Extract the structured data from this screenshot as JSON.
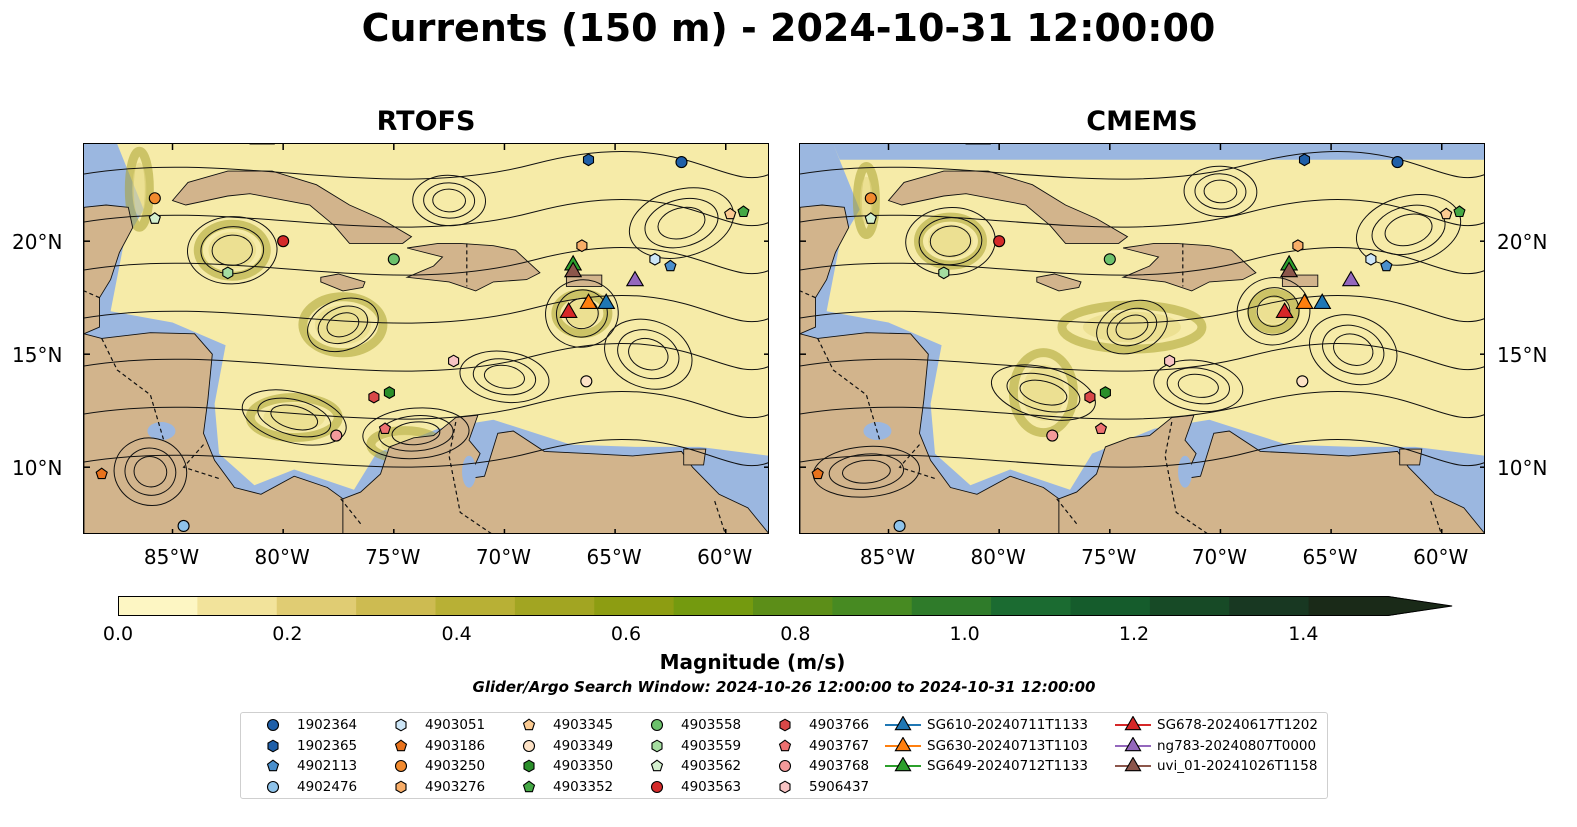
{
  "title": "Currents (150 m) - 2024-10-31 12:00:00",
  "panels": [
    {
      "title": "RTOFS"
    },
    {
      "title": "CMEMS"
    }
  ],
  "axes": {
    "lon_labels": [
      "85°W",
      "80°W",
      "75°W",
      "70°W",
      "65°W",
      "60°W"
    ],
    "lon_values": [
      -85,
      -80,
      -75,
      -70,
      -65,
      -60
    ],
    "lat_labels": [
      "20°N",
      "15°N",
      "10°N"
    ],
    "lat_values": [
      20,
      15,
      10
    ],
    "lon_range": [
      -89,
      -58
    ],
    "lat_range": [
      7,
      24.3
    ]
  },
  "colorbar": {
    "label": "Magnitude (m/s)",
    "ticks": [
      "0.0",
      "0.2",
      "0.4",
      "0.6",
      "0.8",
      "1.0",
      "1.2",
      "1.4"
    ],
    "tick_values": [
      0,
      0.2,
      0.4,
      0.6,
      0.8,
      1.0,
      1.2,
      1.4
    ],
    "range": [
      0,
      1.5
    ],
    "extend": "max",
    "colors": [
      "#fdf6c3",
      "#f2e39b",
      "#e0cc73",
      "#cdbb51",
      "#b8b035",
      "#a2a522",
      "#8d9d12",
      "#749a0f",
      "#5c8e18",
      "#478a22",
      "#2f7b2a",
      "#1b6b31",
      "#155c2c",
      "#174a26",
      "#183822",
      "#1a2a18"
    ]
  },
  "search_window": "Glider/Argo Search Window: 2024-10-26 12:00:00 to 2024-10-31 12:00:00",
  "colors": {
    "land": "#d2b48c",
    "ocean": "#9bb7e0"
  },
  "legend": [
    {
      "label": "1902364",
      "marker": "circle",
      "color": "#1f5fa8"
    },
    {
      "label": "1902365",
      "marker": "hexagon",
      "color": "#1f5fa8"
    },
    {
      "label": "4902113",
      "marker": "pentagon",
      "color": "#4a8fcc"
    },
    {
      "label": "4902476",
      "marker": "circle",
      "color": "#8fc3ea"
    },
    {
      "label": "4903051",
      "marker": "hexagon",
      "color": "#cde6f7"
    },
    {
      "label": "4903186",
      "marker": "pentagon",
      "color": "#e8721c"
    },
    {
      "label": "4903250",
      "marker": "circle",
      "color": "#f28a2e"
    },
    {
      "label": "4903276",
      "marker": "hexagon",
      "color": "#f8ad68"
    },
    {
      "label": "4903345",
      "marker": "pentagon",
      "color": "#fbcb92"
    },
    {
      "label": "4903349",
      "marker": "circle",
      "color": "#fde2c6"
    },
    {
      "label": "4903350",
      "marker": "hexagon",
      "color": "#2a8f2a"
    },
    {
      "label": "4903352",
      "marker": "pentagon",
      "color": "#45a845"
    },
    {
      "label": "4903558",
      "marker": "circle",
      "color": "#6cc16c"
    },
    {
      "label": "4903559",
      "marker": "hexagon",
      "color": "#a5dda0"
    },
    {
      "label": "4903562",
      "marker": "pentagon",
      "color": "#d4f0cf"
    },
    {
      "label": "4903563",
      "marker": "circle",
      "color": "#d42a2a"
    },
    {
      "label": "4903766",
      "marker": "hexagon",
      "color": "#d94848"
    },
    {
      "label": "4903767",
      "marker": "pentagon",
      "color": "#ee7070"
    },
    {
      "label": "4903768",
      "marker": "circle",
      "color": "#f39a9a"
    },
    {
      "label": "5906437",
      "marker": "hexagon",
      "color": "#f8c4c4"
    },
    {
      "label": "SG610-20240711T1133",
      "marker": "triangle",
      "color": "#1f77b4"
    },
    {
      "label": "SG630-20240713T1103",
      "marker": "triangle",
      "color": "#ff7f0e"
    },
    {
      "label": "SG649-20240712T1133",
      "marker": "triangle",
      "color": "#2ca02c"
    },
    {
      "label": "SG678-20240617T1202",
      "marker": "triangle",
      "color": "#d62728"
    },
    {
      "label": "ng783-20240807T0000",
      "marker": "triangle",
      "color": "#9467bd"
    },
    {
      "label": "uvi_01-20241026T1158",
      "marker": "triangle",
      "color": "#8c564b"
    }
  ],
  "markers": [
    {
      "id": "1902364",
      "lon": -62,
      "lat": 23.5
    },
    {
      "id": "1902365",
      "lon": -66.2,
      "lat": 23.6
    },
    {
      "id": "4902113",
      "lon": -62.5,
      "lat": 18.9
    },
    {
      "id": "4902476",
      "lon": -84.5,
      "lat": 7.4
    },
    {
      "id": "4903051",
      "lon": -63.2,
      "lat": 19.2
    },
    {
      "id": "4903186",
      "lon": -88.2,
      "lat": 9.7
    },
    {
      "id": "4903250",
      "lon": -85.8,
      "lat": 21.9
    },
    {
      "id": "4903276",
      "lon": -66.5,
      "lat": 19.8
    },
    {
      "id": "4903345",
      "lon": -59.8,
      "lat": 21.2
    },
    {
      "id": "4903349",
      "lon": -66.3,
      "lat": 13.8
    },
    {
      "id": "4903350",
      "lon": -75.2,
      "lat": 13.3
    },
    {
      "id": "4903352",
      "lon": -59.2,
      "lat": 21.3
    },
    {
      "id": "4903558",
      "lon": -75.0,
      "lat": 19.2
    },
    {
      "id": "4903559",
      "lon": -82.5,
      "lat": 18.6
    },
    {
      "id": "4903562",
      "lon": -85.8,
      "lat": 21.0
    },
    {
      "id": "4903563",
      "lon": -80.0,
      "lat": 20.0
    },
    {
      "id": "4903766",
      "lon": -75.9,
      "lat": 13.1
    },
    {
      "id": "4903767",
      "lon": -75.4,
      "lat": 11.7
    },
    {
      "id": "4903768",
      "lon": -77.6,
      "lat": 11.4
    },
    {
      "id": "5906437",
      "lon": -72.3,
      "lat": 14.7
    },
    {
      "id": "SG610-20240711T1133",
      "lon": -65.4,
      "lat": 17.3
    },
    {
      "id": "SG630-20240713T1103",
      "lon": -66.2,
      "lat": 17.3
    },
    {
      "id": "SG649-20240712T1133",
      "lon": -66.9,
      "lat": 19.0
    },
    {
      "id": "SG678-20240617T1202",
      "lon": -67.1,
      "lat": 16.9
    },
    {
      "id": "ng783-20240807T0000",
      "lon": -64.1,
      "lat": 18.3
    },
    {
      "id": "uvi_01-20241026T1158",
      "lon": -66.9,
      "lat": 18.7
    }
  ]
}
